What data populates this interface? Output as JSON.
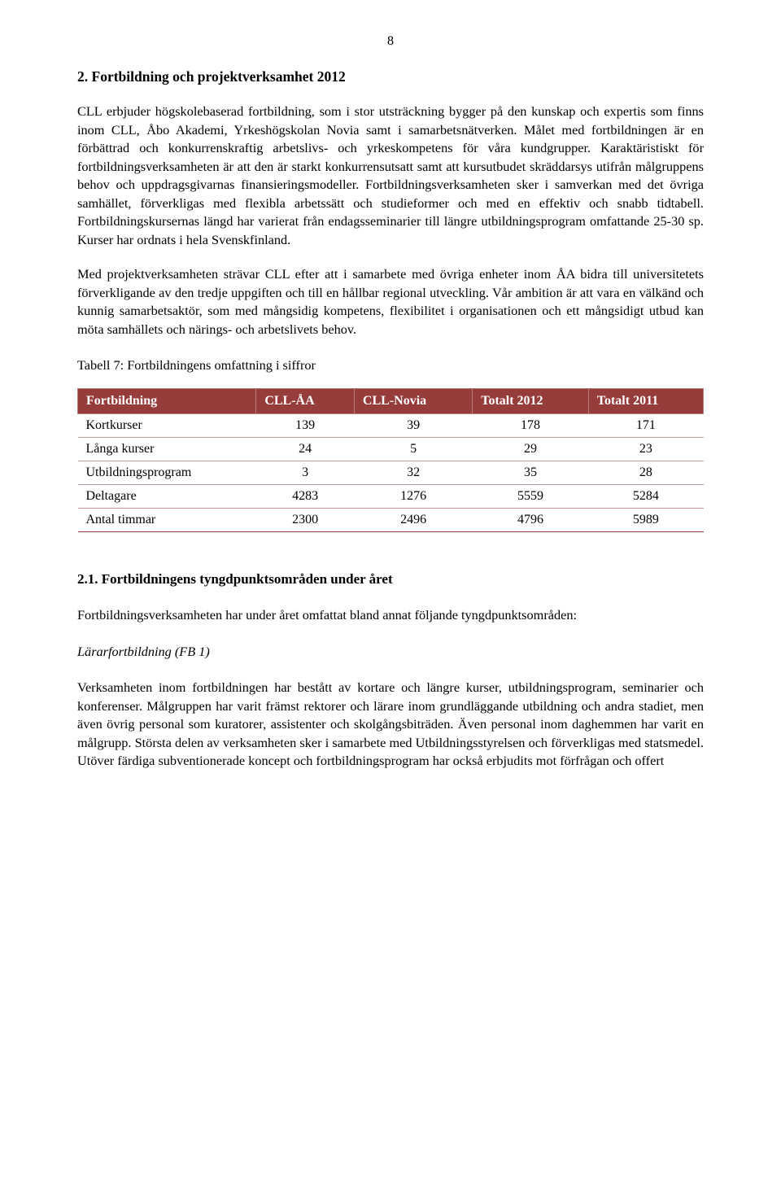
{
  "page_number": "8",
  "heading_main": "2. Fortbildning och projektverksamhet 2012",
  "para1": "CLL erbjuder högskolebaserad fortbildning, som i stor utsträckning bygger på den kunskap och expertis som finns inom CLL, Åbo Akademi, Yrkeshögskolan Novia samt i samarbetsnätverken. Målet med fortbildningen är en förbättrad och konkurrenskraftig arbetslivs- och yrkeskompetens för våra kundgrupper. Karaktäristiskt för fortbildningsverksamheten är att den är starkt konkurrensutsatt samt att kursutbudet skräddarsys utifrån målgruppens behov och uppdragsgivarnas finansieringsmodeller. Fortbildningsverksamheten sker i samverkan med det övriga samhället, förverkligas med flexibla arbetssätt och studieformer och med en effektiv och snabb tidtabell. Fortbildningskursernas längd har varierat från endagsseminarier till längre utbildningsprogram omfattande 25-30 sp.  Kurser har ordnats i hela Svenskfinland.",
  "para2": "Med projektverksamheten strävar CLL efter att i samarbete med övriga enheter inom ÅA bidra till universitetets förverkligande av den tredje uppgiften och till en hållbar regional utveckling. Vår ambition är att vara en välkänd och kunnig samarbetsaktör, som med mångsidig kompetens, flexibilitet i organisationen och ett mångsidigt utbud kan möta samhällets och närings- och arbetslivets behov.",
  "table_caption": "Tabell 7: Fortbildningens omfattning i siffror",
  "table": {
    "header_bg": "#963c3b",
    "header_fg": "#ffffff",
    "border_color": "#c49797",
    "columns": [
      "Fortbildning",
      "CLL-ÅA",
      "CLL-Novia",
      "Totalt 2012",
      "Totalt 2011"
    ],
    "rows": [
      [
        "Kortkurser",
        "139",
        "39",
        "178",
        "171"
      ],
      [
        "Långa kurser",
        "24",
        "5",
        "29",
        "23"
      ],
      [
        "Utbildningsprogram",
        "3",
        "32",
        "35",
        "28"
      ],
      [
        "Deltagare",
        "4283",
        "1276",
        "5559",
        "5284"
      ],
      [
        "Antal timmar",
        "2300",
        "2496",
        "4796",
        "5989"
      ]
    ]
  },
  "heading_21": "2.1. Fortbildningens tyngdpunktsområden under året",
  "para21": "Fortbildningsverksamheten har under året omfattat bland annat följande tyngdpunktsområden:",
  "italic_head": "Lärarfortbildning (FB 1)",
  "para_fb1": "Verksamheten inom fortbildningen har bestått av kortare och längre kurser, utbildningsprogram, seminarier och konferenser. Målgruppen har varit främst rektorer och lärare inom grundläggande utbildning och andra stadiet, men även övrig personal som kuratorer, assistenter och skolgångsbiträden. Även personal inom daghemmen har varit en målgrupp. Största delen av verksamheten sker i samarbete med Utbildningsstyrelsen och förverkligas med statsmedel. Utöver färdiga subventionerade koncept och fortbildningsprogram har också erbjudits mot förfrågan och offert"
}
